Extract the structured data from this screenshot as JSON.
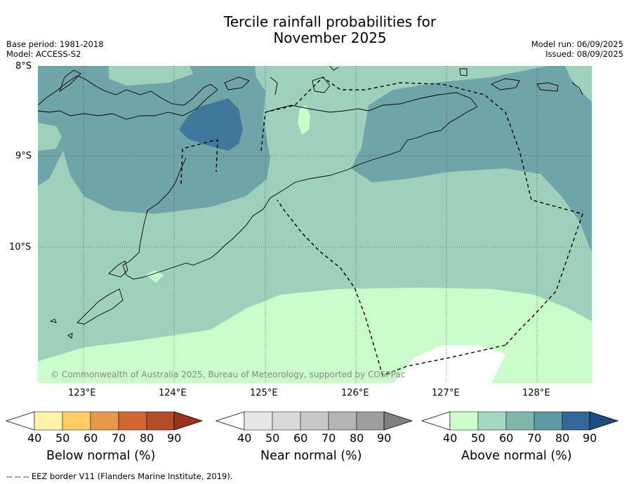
{
  "title_line1": "Tercile rainfall probabilities for",
  "title_line2": "November 2025",
  "base_period": "Base period: 1981-2018",
  "model": "Model: ACCESS-S2",
  "model_run": "Model run: 06/09/2025",
  "issued": "Issued: 08/09/2025",
  "copyright": "© Commonwealth of Australia 2025, Bureau of Meteorology, supported by COSPPac",
  "lat_labels": [
    "8°S",
    "9°S",
    "10°S"
  ],
  "lon_labels": [
    "123°E",
    "124°E",
    "125°E",
    "126°E",
    "127°E",
    "128°E"
  ],
  "colorbars": [
    {
      "title": "Below normal (%)",
      "ticks": [
        "40",
        "50",
        "60",
        "70",
        "80",
        "90"
      ],
      "colors": [
        "#ffffff",
        "#fff1a8",
        "#ffcc66",
        "#e6994a",
        "#d06633",
        "#b34c29",
        "#99331f"
      ]
    },
    {
      "title": "Near normal (%)",
      "ticks": [
        "40",
        "50",
        "60",
        "70",
        "80",
        "90"
      ],
      "colors": [
        "#ffffff",
        "#e6e6e6",
        "#d9d9d9",
        "#c8c8c8",
        "#b4b4b4",
        "#9e9e9e",
        "#808080"
      ]
    },
    {
      "title": "Above normal (%)",
      "ticks": [
        "40",
        "50",
        "60",
        "70",
        "80",
        "90"
      ],
      "colors": [
        "#ffffff",
        "#ccffcc",
        "#a3d9bf",
        "#80b5ab",
        "#5b9aa0",
        "#336699",
        "#1f4c80"
      ]
    }
  ],
  "footer": "-- -- -- EEZ border V11 (Flanders Marine Institute, 2019)."
}
